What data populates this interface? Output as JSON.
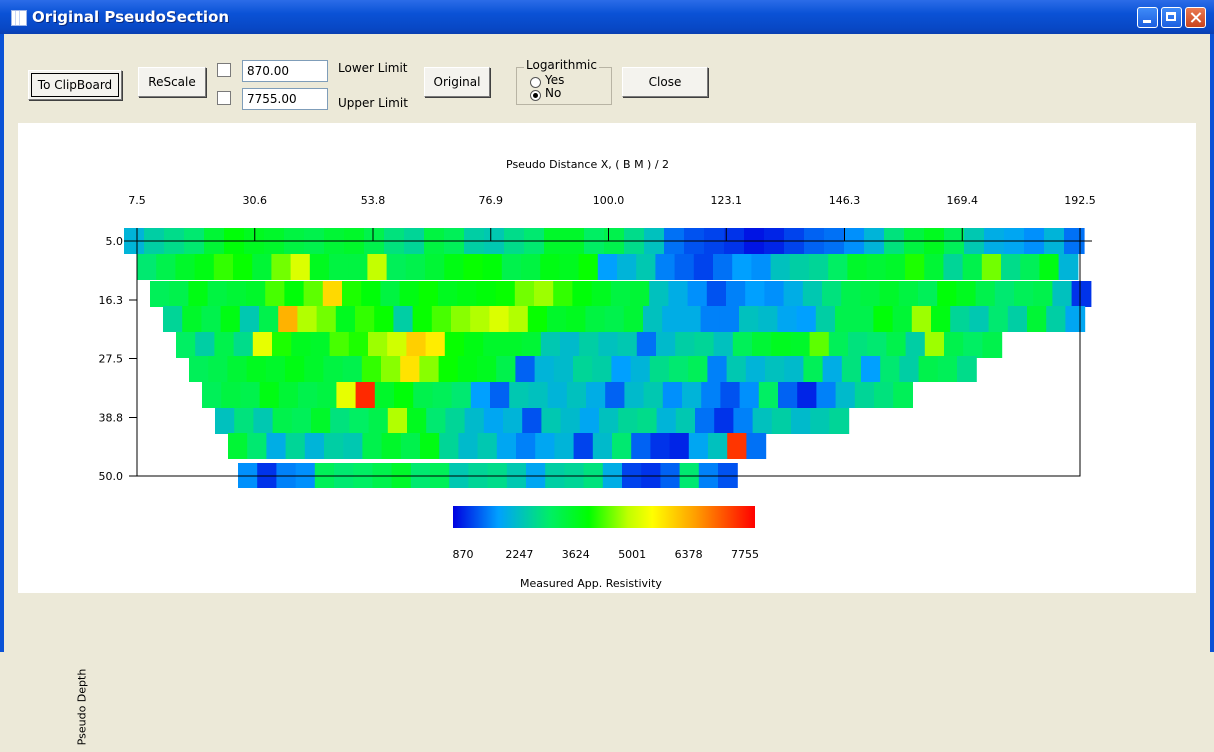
{
  "window": {
    "title": "Original PseudoSection"
  },
  "toolbar": {
    "clipboard_label": "To ClipBoard",
    "rescale_label": "ReScale",
    "lower_limit_value": "870.00",
    "lower_limit_label": "Lower Limit",
    "upper_limit_value": "7755.00",
    "upper_limit_label": "Upper Limit",
    "original_label": "Original",
    "log_group_label": "Logarithmic",
    "yes_label": "Yes",
    "no_label": "No",
    "log_selected": "No",
    "close_label": "Close"
  },
  "chart_data": {
    "type": "heatmap",
    "xlabel": "Pseudo Distance X, ( B M ) / 2",
    "ylabel": "Pseudo Depth",
    "x_ticks": [
      "7.5",
      "30.6",
      "53.8",
      "76.9",
      "100.0",
      "123.1",
      "146.3",
      "169.4",
      "192.5"
    ],
    "y_ticks": [
      "5.0",
      "16.3",
      "27.5",
      "38.8",
      "50.0"
    ],
    "xlim": [
      7.5,
      192.5
    ],
    "ylim": [
      5.0,
      50.0
    ],
    "colorbar_title": "Measured App. Resistivity",
    "colorbar_ticks": [
      "870",
      "2247",
      "3624",
      "5001",
      "6378",
      "7755"
    ],
    "value_range": [
      870,
      7755
    ],
    "colors": [
      "#0000e0",
      "#00a0ff",
      "#00ee66",
      "#00ff00",
      "#c0ff00",
      "#ffff00",
      "#ffa000",
      "#ff0000"
    ],
    "rows": [
      [
        2200,
        2600,
        2800,
        3000,
        3500,
        3900,
        3700,
        3600,
        3400,
        3300,
        3500,
        3600,
        3300,
        2900,
        2700,
        3400,
        3200,
        2600,
        2500,
        2800,
        3000,
        3600,
        3600,
        3100,
        3300,
        2800,
        2400,
        1600,
        1400,
        1300,
        1200,
        1000,
        1100,
        1300,
        1500,
        1600,
        1800,
        2200,
        2900,
        3400,
        3700,
        3200,
        2500,
        2100,
        2000,
        1800,
        2200,
        1600,
        1200
      ],
      [
        3000,
        3300,
        3600,
        3800,
        4200,
        4000,
        3500,
        4500,
        5100,
        3700,
        3400,
        3400,
        4900,
        3200,
        3300,
        3500,
        3800,
        4000,
        3900,
        3300,
        3400,
        3800,
        3700,
        4000,
        1900,
        2200,
        2500,
        1700,
        1500,
        1300,
        1600,
        1900,
        1800,
        2400,
        2600,
        2700,
        3100,
        3600,
        3500,
        3600,
        4100,
        3500,
        2700,
        3300,
        4500,
        2800,
        3200,
        3800,
        2200
      ],
      [
        3200,
        3300,
        3800,
        3400,
        3500,
        3600,
        4300,
        3900,
        4400,
        5800,
        4100,
        3900,
        3400,
        3800,
        4000,
        3700,
        3800,
        3900,
        4000,
        4500,
        4700,
        4200,
        3900,
        3700,
        3400,
        3500,
        2400,
        2100,
        1800,
        1400,
        1700,
        1900,
        1800,
        2100,
        2500,
        2900,
        3300,
        3400,
        3600,
        3400,
        3200,
        3900,
        3700,
        3300,
        3000,
        3200,
        3300,
        2400,
        1200
      ],
      [
        2700,
        3600,
        3300,
        3800,
        2500,
        3300,
        6200,
        4800,
        4500,
        3700,
        4200,
        4000,
        2600,
        4000,
        4300,
        4600,
        4800,
        5100,
        4800,
        4000,
        3600,
        3700,
        3400,
        3300,
        3500,
        2400,
        2100,
        2100,
        1700,
        1700,
        2400,
        2300,
        2000,
        1900,
        2600,
        3300,
        3300,
        3900,
        3500,
        4700,
        3800,
        2700,
        2500,
        3000,
        2600,
        3500,
        2600,
        2000
      ],
      [
        3100,
        2600,
        3300,
        2800,
        5200,
        4100,
        3700,
        3600,
        4300,
        4100,
        4700,
        5000,
        5900,
        5600,
        4000,
        3800,
        3600,
        3600,
        3500,
        2500,
        2300,
        2600,
        2400,
        2500,
        1600,
        2300,
        2600,
        2700,
        2400,
        3200,
        3500,
        3700,
        3600,
        4400,
        3200,
        2900,
        3000,
        3300,
        2600,
        4700,
        3300,
        3100,
        3300
      ],
      [
        3200,
        3300,
        3500,
        3700,
        3600,
        3800,
        3600,
        3400,
        3300,
        4200,
        4600,
        5700,
        4600,
        4000,
        3800,
        3700,
        3300,
        1500,
        2200,
        2300,
        2700,
        2600,
        1900,
        2200,
        2800,
        3000,
        3200,
        1700,
        2500,
        2200,
        2400,
        2300,
        3200,
        2100,
        2900,
        1900,
        3000,
        2600,
        3300,
        3200,
        2800
      ],
      [
        3200,
        3400,
        3300,
        3800,
        3500,
        3300,
        3400,
        5200,
        7400,
        3600,
        3900,
        3300,
        3200,
        3000,
        1900,
        1500,
        2500,
        2400,
        2200,
        2400,
        2100,
        1500,
        2300,
        2500,
        1800,
        2200,
        1700,
        1400,
        1800,
        3100,
        1500,
        1100,
        1700,
        2300,
        2700,
        2900,
        3200
      ],
      [
        2400,
        2900,
        2500,
        3300,
        3200,
        3600,
        2900,
        3100,
        3300,
        4800,
        3700,
        3000,
        2700,
        2300,
        2000,
        2200,
        1400,
        2500,
        2300,
        2000,
        2400,
        2700,
        2800,
        2200,
        2500,
        1600,
        1200,
        1700,
        2400,
        2600,
        2300,
        2500,
        2700
      ],
      [
        3500,
        3000,
        2100,
        2700,
        2200,
        2600,
        2500,
        3300,
        3600,
        3300,
        3800,
        2700,
        2300,
        2500,
        2000,
        1700,
        2000,
        2200,
        1300,
        2300,
        3000,
        1500,
        1200,
        1100,
        2000,
        2400,
        7300,
        1600
      ],
      [
        1800,
        1200,
        1700,
        1800,
        3200,
        3000,
        3100,
        3300,
        3600,
        3000,
        3200,
        2500,
        2700,
        2800,
        2500,
        2000,
        2600,
        2700,
        2900,
        2100,
        1300,
        1200,
        1500,
        3000,
        1700,
        1400
      ]
    ]
  }
}
